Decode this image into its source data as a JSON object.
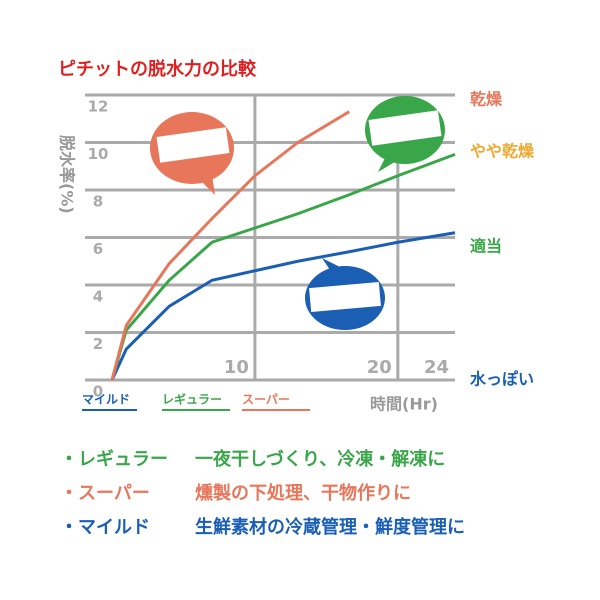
{
  "chart_data": {
    "type": "line",
    "title": "ピチットの脱水力の比較",
    "y_label": "脱水率(%)",
    "x_label": "時間(Hr)",
    "x": [
      0,
      1,
      4,
      7,
      10,
      13,
      16.6,
      20,
      24
    ],
    "series": [
      {
        "name": "マイルド",
        "color": "#1a5fb4",
        "values": [
          0,
          1.3,
          3.1,
          4.2,
          4.6,
          5.0,
          5.4,
          5.8,
          6.2
        ]
      },
      {
        "name": "レギュラー",
        "color": "#3aa64a",
        "values": [
          0,
          2.1,
          4.2,
          5.8,
          6.4,
          7.0,
          7.8,
          8.6,
          9.5
        ]
      },
      {
        "name": "スーパー",
        "color": "#e8765a",
        "values": [
          0,
          2.3,
          4.9,
          6.8,
          8.6,
          10.0,
          11.3,
          null,
          null
        ]
      }
    ],
    "xlim": [
      0,
      24
    ],
    "xticks": [
      10,
      20,
      24
    ],
    "ylim": [
      0,
      12
    ],
    "yticks": [
      0,
      2,
      4,
      6,
      8,
      10,
      12
    ],
    "grid": true,
    "annotations": [
      {
        "text": "乾燥",
        "y": 11.8,
        "color": "#e8765a"
      },
      {
        "text": "やや乾燥",
        "y": 9.6,
        "color": "#f0a830"
      },
      {
        "text": "適当",
        "y": 5.6,
        "color": "#3aa64a"
      },
      {
        "text": "水っぽい",
        "y": 0,
        "color": "#1a5fb4"
      }
    ],
    "notes": [
      {
        "label": "・レギュラー",
        "text": "一夜干しづくり、冷凍・解凍に",
        "color": "#3aa64a"
      },
      {
        "label": "・スーパー",
        "text": "燻製の下処理、干物作りに",
        "color": "#e8765a"
      },
      {
        "label": "・マイルド",
        "text": "生鮮素材の冷蔵管理・鮮度管理に",
        "color": "#1a5fb4"
      }
    ]
  }
}
